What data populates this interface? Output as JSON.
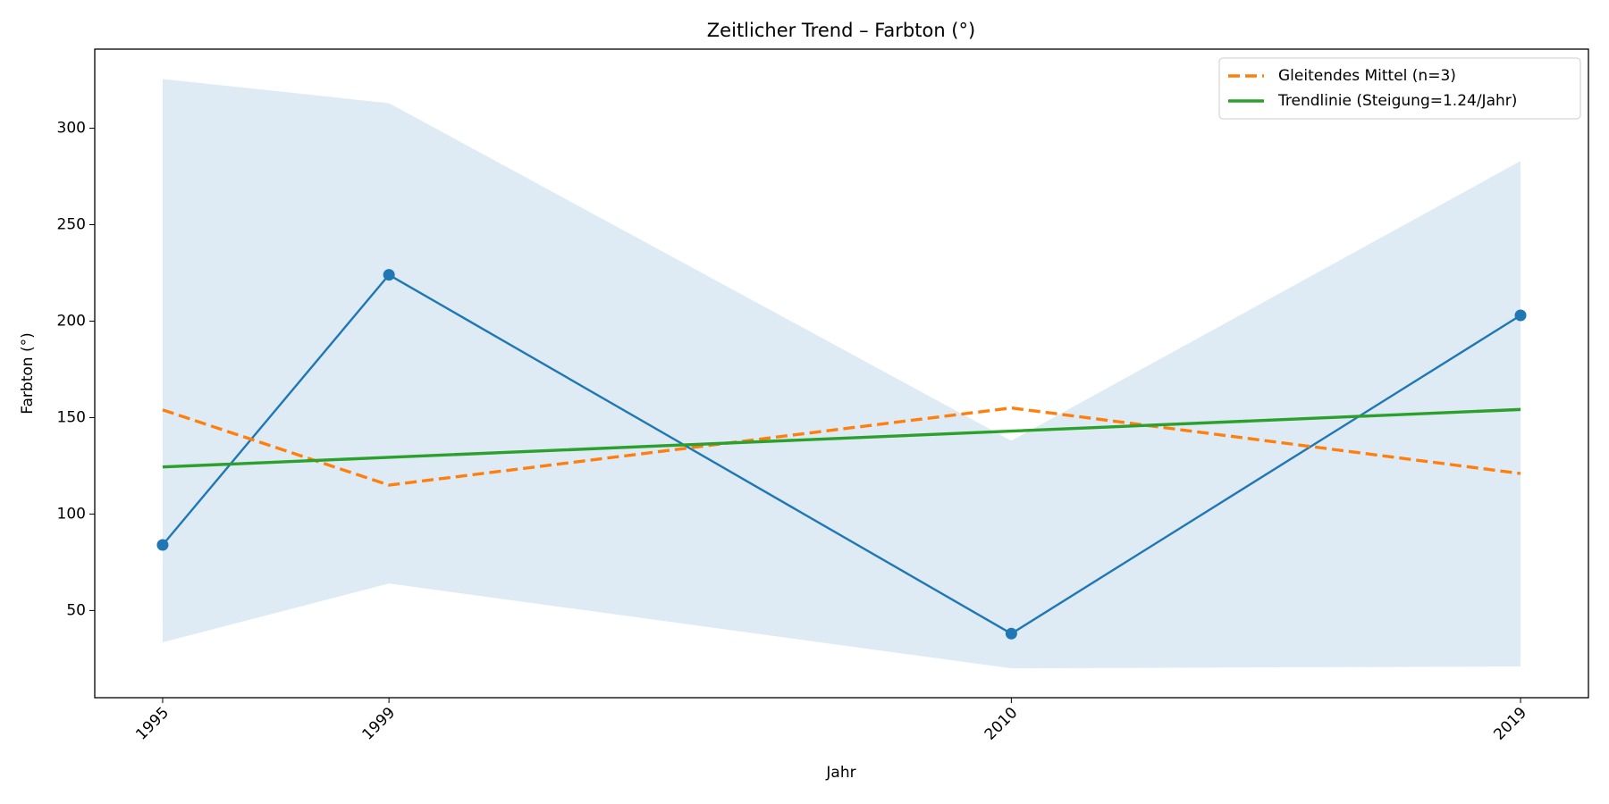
{
  "chart_data": {
    "type": "line",
    "title": "Zeitlicher Trend – Farbton (°)",
    "x_label": "Jahr",
    "y_label": "Farbton (°)",
    "x": [
      1995,
      1999,
      2010,
      2019
    ],
    "xlim": [
      1993.8,
      2020.2
    ],
    "xticks": [
      1995,
      1999,
      2010,
      2019
    ],
    "ylim": [
      4.8,
      341
    ],
    "yticks": [
      50,
      100,
      150,
      200,
      250,
      300
    ],
    "grid": false,
    "legend": "upper right",
    "band": {
      "color": "#1f77b4",
      "upper": [
        325.5,
        313,
        138,
        283
      ],
      "lower": [
        33.5,
        64,
        20,
        21
      ]
    },
    "series": [
      {
        "color": "#1f77b4",
        "style": "solid",
        "markers": true,
        "values": [
          84,
          224,
          38,
          203
        ]
      },
      {
        "name": "Gleitendes Mittel (n=3)",
        "color": "#ff7f0e",
        "style": "dashed",
        "values": [
          154,
          115,
          155,
          121
        ]
      },
      {
        "name": "Trendlinie (Steigung=1.24/Jahr)",
        "color": "#2ca02c",
        "style": "solid",
        "values": [
          124.4,
          129.4,
          143.0,
          154.2
        ]
      }
    ]
  }
}
